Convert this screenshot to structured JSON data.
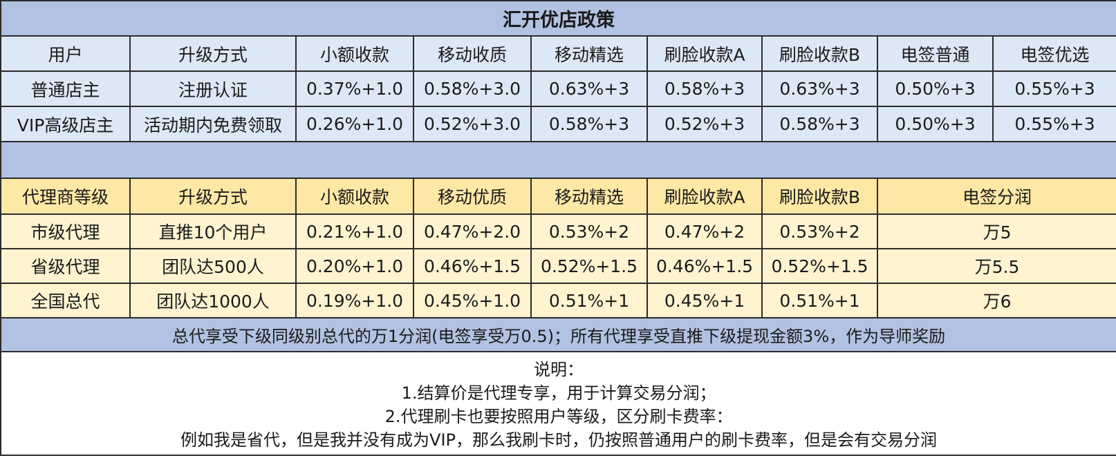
{
  "title": "汇开优店政策",
  "user_table": {
    "headers": [
      "用户",
      "升级方式",
      "小额收款",
      "移动收质",
      "移动精选",
      "刷脸收款A",
      "刷脸收款B",
      "电签普通",
      "电签优选"
    ],
    "rows": [
      [
        "普通店主",
        "注册认证",
        "0.37%+1.0",
        "0.58%+3.0",
        "0.63%+3",
        "0.58%+3",
        "0.63%+3",
        "0.50%+3",
        "0.55%+3"
      ],
      [
        "VIP高级店主",
        "活动期内免费领取",
        "0.26%+1.0",
        "0.52%+3.0",
        "0.58%+3",
        "0.52%+3",
        "0.58%+3",
        "0.50%+3",
        "0.55%+3"
      ]
    ]
  },
  "agent_table": {
    "headers": [
      "代理商等级",
      "升级方式",
      "小额收款",
      "移动优质",
      "移动精选",
      "刷脸收款A",
      "刷脸收款B",
      "电签分润"
    ],
    "rows": [
      [
        "市级代理",
        "直推10个用户",
        "0.21%+1.0",
        "0.47%+2.0",
        "0.53%+2",
        "0.47%+2",
        "0.53%+2",
        "万5"
      ],
      [
        "省级代理",
        "团队达500人",
        "0.20%+1.0",
        "0.46%+1.5",
        "0.52%+1.5",
        "0.46%+1.5",
        "0.52%+1.5",
        "万5.5"
      ],
      [
        "全国总代",
        "团队达1000人",
        "0.19%+1.0",
        "0.45%+1.0",
        "0.51%+1",
        "0.45%+1",
        "0.51%+1",
        "万6"
      ]
    ]
  },
  "notice": "总代享受下级同级别总代的万1分润(电签享受万0.5)；所有代理享受直推下级提现金额3%，作为导师奖励",
  "notes": {
    "heading": "说明：",
    "lines": [
      "1.结算价是代理专享，用于计算交易分润；",
      "2.代理刷卡也要按照用户等级，区分刷卡费率：",
      "例如我是省代，但是我并没有成为VIP，那么我刷卡时，仍按照普通用户的刷卡费率，但是会有交易分润"
    ]
  },
  "colors": {
    "title_bg": "#b2c2e2",
    "user_bg": "#dde8f6",
    "agent_header_bg": "#fde8a6",
    "agent_row_bg": "#fff3d0",
    "border": "#2b2b2b"
  }
}
